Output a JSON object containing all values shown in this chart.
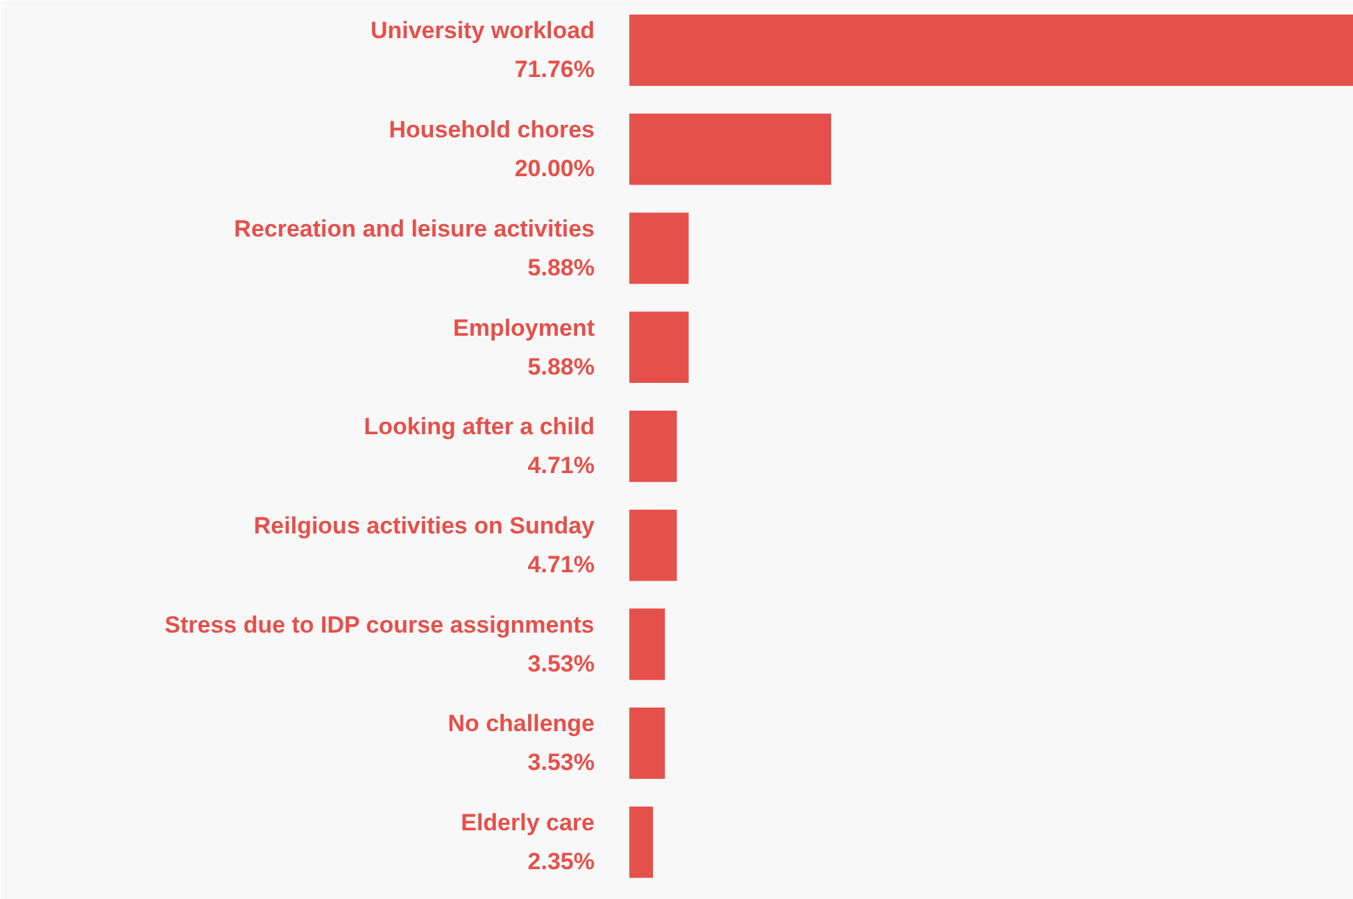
{
  "chart_data": {
    "type": "bar",
    "orientation": "horizontal",
    "color": "#e5504a",
    "categories": [
      "University workload",
      "Household chores",
      "Recreation and leisure activities",
      "Employment",
      "Looking after a child",
      "Reilgious activities on Sunday",
      "Stress due to IDP course assignments",
      "No challenge",
      "Elderly care"
    ],
    "values": [
      71.76,
      20.0,
      5.88,
      5.88,
      4.71,
      4.71,
      3.53,
      3.53,
      2.35
    ],
    "value_labels": [
      "71.76%",
      "20.00%",
      "5.88%",
      "5.88%",
      "4.71%",
      "4.71%",
      "3.53%",
      "3.53%",
      "2.35%"
    ]
  }
}
